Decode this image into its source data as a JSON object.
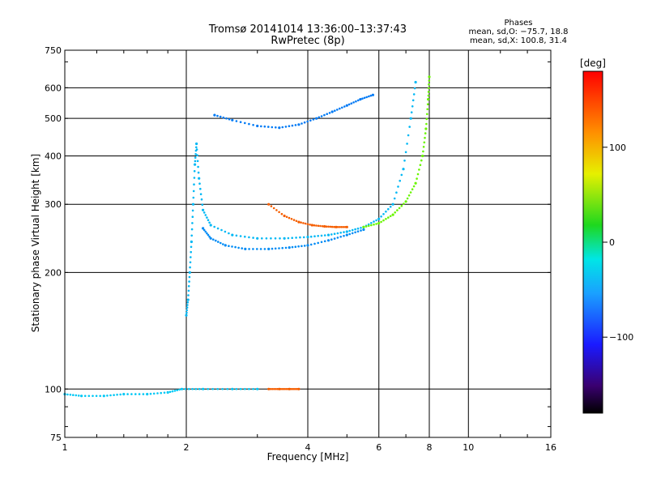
{
  "header": {
    "title_line1": "Tromsø 20141014 13:36:00–13:37:43",
    "title_line2": "RwPretec (8p)"
  },
  "phases_box": {
    "title": "Phases",
    "line_o": "mean, sd,O: −75.7, 18.8",
    "line_x": "mean, sd,X: 100.8, 31.4"
  },
  "colorbar": {
    "label": "[deg]",
    "ticks": [
      {
        "value": 100,
        "label": "100"
      },
      {
        "value": 0,
        "label": "0"
      },
      {
        "value": -100,
        "label": "−100"
      }
    ],
    "range": [
      -180,
      180
    ]
  },
  "chart_data": {
    "type": "scatter",
    "title": "Tromsø 20141014 13:36:00–13:37:43",
    "subtitle": "RwPretec (8p)",
    "xlabel": "Frequency [MHz]",
    "ylabel": "Stationary phase Virtual Height [km]",
    "x_scale": "log",
    "y_scale": "log",
    "xlim": [
      1,
      16
    ],
    "ylim": [
      75,
      750
    ],
    "x_ticks": [
      1,
      2,
      4,
      6,
      8,
      10,
      16
    ],
    "x_tick_labels": [
      "1",
      "2",
      "4",
      "6",
      "8",
      "10",
      "16"
    ],
    "y_ticks": [
      75,
      100,
      200,
      300,
      400,
      500,
      600,
      750
    ],
    "y_tick_labels": [
      "75",
      "100",
      "200",
      "300",
      "400",
      "500",
      "600",
      "750"
    ],
    "grid": true,
    "color_scale": "phase (deg), rainbow",
    "series": [
      {
        "values": [
          [
            1.0,
            97
          ],
          [
            1.1,
            96
          ],
          [
            1.25,
            96
          ],
          [
            1.4,
            97
          ],
          [
            1.6,
            97
          ],
          [
            1.8,
            98
          ],
          [
            1.95,
            100
          ],
          [
            2.2,
            100
          ],
          [
            2.6,
            100
          ],
          [
            3.0,
            100
          ]
        ],
        "phase": -75
      },
      {
        "values": [
          [
            3.2,
            100
          ],
          [
            3.4,
            100
          ],
          [
            3.6,
            100
          ],
          [
            3.8,
            100
          ]
        ],
        "phase": 150
      },
      {
        "values": [
          [
            2.0,
            155
          ],
          [
            2.02,
            170
          ],
          [
            2.04,
            200
          ],
          [
            2.06,
            240
          ],
          [
            2.08,
            300
          ],
          [
            2.1,
            380
          ],
          [
            2.12,
            430
          ],
          [
            2.15,
            350
          ],
          [
            2.2,
            290
          ],
          [
            2.3,
            265
          ],
          [
            2.6,
            250
          ],
          [
            3.0,
            245
          ],
          [
            3.5,
            245
          ],
          [
            4.0,
            247
          ],
          [
            4.5,
            250
          ],
          [
            5.0,
            255
          ],
          [
            5.5,
            262
          ],
          [
            6.0,
            275
          ],
          [
            6.5,
            300
          ],
          [
            6.9,
            370
          ],
          [
            7.2,
            500
          ],
          [
            7.4,
            620
          ]
        ],
        "phase": -80
      },
      {
        "values": [
          [
            2.2,
            260
          ],
          [
            2.3,
            245
          ],
          [
            2.5,
            235
          ],
          [
            2.8,
            230
          ],
          [
            3.2,
            230
          ],
          [
            3.6,
            232
          ],
          [
            4.0,
            235
          ],
          [
            4.5,
            242
          ],
          [
            5.0,
            250
          ],
          [
            5.5,
            258
          ]
        ],
        "phase": -95
      },
      {
        "values": [
          [
            2.35,
            510
          ],
          [
            2.6,
            495
          ],
          [
            3.0,
            478
          ],
          [
            3.4,
            473
          ],
          [
            3.8,
            482
          ],
          [
            4.2,
            500
          ],
          [
            4.6,
            520
          ],
          [
            5.0,
            540
          ],
          [
            5.4,
            560
          ],
          [
            5.8,
            575
          ]
        ],
        "phase": -100
      },
      {
        "values": [
          [
            3.2,
            300
          ],
          [
            3.5,
            280
          ],
          [
            3.8,
            270
          ],
          [
            4.1,
            265
          ],
          [
            4.4,
            263
          ],
          [
            4.7,
            262
          ],
          [
            5.0,
            262
          ]
        ],
        "phase": 150
      },
      {
        "values": [
          [
            5.5,
            262
          ],
          [
            6.0,
            268
          ],
          [
            6.5,
            282
          ],
          [
            7.0,
            305
          ],
          [
            7.4,
            340
          ],
          [
            7.7,
            400
          ],
          [
            7.85,
            470
          ],
          [
            7.95,
            560
          ],
          [
            8.0,
            640
          ]
        ],
        "phase": 55
      }
    ]
  }
}
